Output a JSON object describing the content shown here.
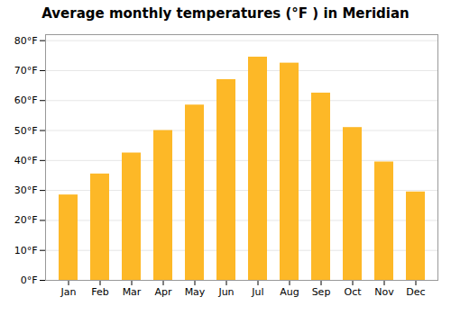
{
  "chart_data": {
    "type": "bar",
    "title": "Average monthly temperatures (°F ) in Meridian",
    "categories": [
      "Jan",
      "Feb",
      "Mar",
      "Apr",
      "May",
      "Jun",
      "Jul",
      "Aug",
      "Sep",
      "Oct",
      "Nov",
      "Dec"
    ],
    "values": [
      28.5,
      35.5,
      42.5,
      50.0,
      58.5,
      67.0,
      74.5,
      72.5,
      62.5,
      51.0,
      39.5,
      29.5
    ],
    "color": "#FDB827",
    "ylim": [
      0,
      82
    ],
    "yticks": [
      {
        "value": 0,
        "label": "0°F"
      },
      {
        "value": 10,
        "label": "10°F"
      },
      {
        "value": 20,
        "label": "20°F"
      },
      {
        "value": 30,
        "label": "30°F"
      },
      {
        "value": 40,
        "label": "40°F"
      },
      {
        "value": 50,
        "label": "50°F"
      },
      {
        "value": 60,
        "label": "60°F"
      },
      {
        "value": 70,
        "label": "70°F"
      },
      {
        "value": 80,
        "label": "80°F"
      }
    ],
    "grid": true
  }
}
